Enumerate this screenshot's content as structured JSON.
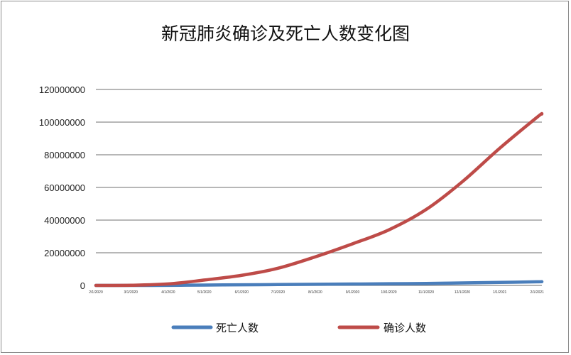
{
  "chart_data": {
    "type": "line",
    "title": "新冠肺炎确诊及死亡人数变化图",
    "xlabel": "",
    "ylabel": "",
    "ylim": [
      0,
      120000000
    ],
    "yticks": [
      0,
      20000000,
      40000000,
      60000000,
      80000000,
      100000000,
      120000000
    ],
    "ytick_labels": [
      "0",
      "20000000",
      "40000000",
      "60000000",
      "80000000",
      "100000000",
      "120000000"
    ],
    "x_tick_labels": [
      "2/1/2020",
      "3/1/2020",
      "4/1/2020",
      "5/1/2020",
      "6/1/2020",
      "7/1/2020",
      "8/1/2020",
      "9/1/2020",
      "10/1/2020",
      "11/1/2020",
      "12/1/2020",
      "1/1/2021",
      "2/1/2021"
    ],
    "x": [
      "2020-02-01",
      "2020-03-01",
      "2020-04-01",
      "2020-05-01",
      "2020-06-01",
      "2020-07-01",
      "2020-08-01",
      "2020-09-01",
      "2020-10-01",
      "2020-11-01",
      "2020-12-01",
      "2021-01-01",
      "2021-02-01",
      "2021-02-05"
    ],
    "series": [
      {
        "name": "死亡人数",
        "color": "#4a7ebb",
        "values": [
          260,
          3000,
          50000,
          240000,
          380000,
          520000,
          690000,
          860000,
          1010000,
          1200000,
          1500000,
          1840000,
          2230000,
          2300000
        ]
      },
      {
        "name": "确诊人数",
        "color": "#be4b48",
        "values": [
          12000,
          88000,
          900000,
          3300000,
          6200000,
          10500000,
          17500000,
          25500000,
          34000000,
          46500000,
          63500000,
          84000000,
          103000000,
          105000000
        ]
      }
    ],
    "grid": true,
    "legend": "bottom"
  }
}
